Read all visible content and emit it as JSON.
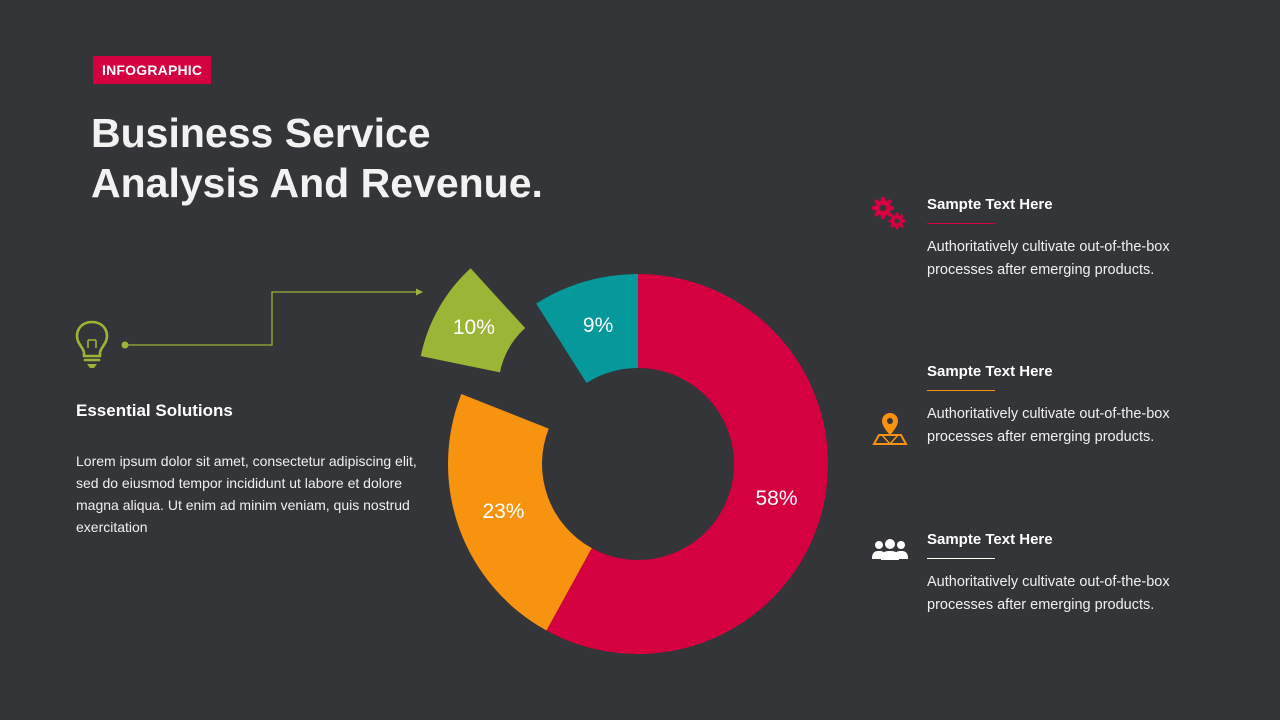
{
  "tag": "INFOGRAPHIC",
  "title_line1": "Business Service",
  "title_line2": "Analysis And Revenue.",
  "essential": {
    "title": "Essential Solutions",
    "body": "Lorem ipsum dolor sit amet, consectetur adipiscing elit, sed do eiusmod tempor incididunt ut labore et dolore magna aliqua. Ut enim ad minim veniam, quis nostrud exercitation",
    "icon": "lightbulb-icon",
    "accent": "#9bb536"
  },
  "chart_data": {
    "type": "pie",
    "variant": "donut",
    "series": [
      {
        "label": "58%",
        "value": 58,
        "color": "#d5003f",
        "exploded": false
      },
      {
        "label": "23%",
        "value": 23,
        "color": "#f7930f",
        "exploded": false
      },
      {
        "label": "10%",
        "value": 10,
        "color": "#9bb536",
        "exploded": true
      },
      {
        "label": "9%",
        "value": 9,
        "color": "#05999c",
        "exploded": false
      }
    ]
  },
  "items": [
    {
      "heading": "Sampte Text Here",
      "description": "Authoritatively cultivate out-of-the-box processes after emerging products.",
      "icon": "gears-icon",
      "color": "#d5003f"
    },
    {
      "heading": "Sampte Text Here",
      "description": "Authoritatively cultivate out-of-the-box processes after emerging products.",
      "icon": "map-pin-icon",
      "color": "#f7930f"
    },
    {
      "heading": "Sampte Text Here",
      "description": "Authoritatively cultivate out-of-the-box processes after emerging products.",
      "icon": "people-icon",
      "color": "#ffffff"
    }
  ]
}
